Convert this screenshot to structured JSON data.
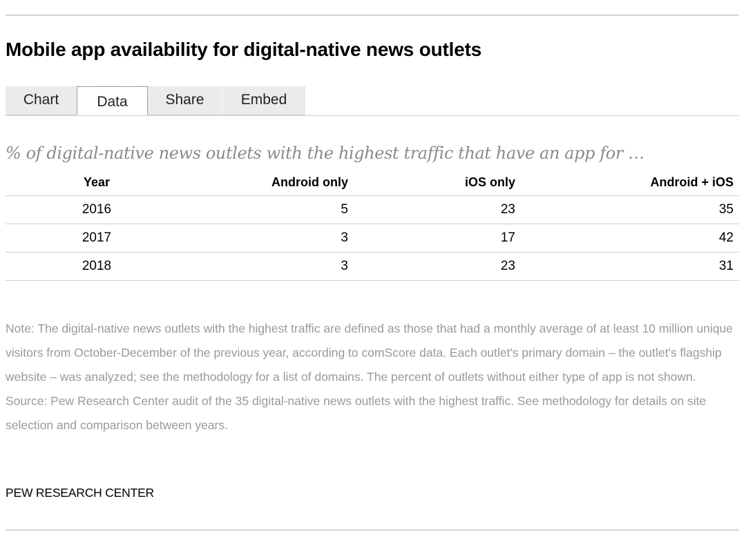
{
  "title": "Mobile app availability for digital-native news outlets",
  "tabs": [
    {
      "label": "Chart",
      "active": false
    },
    {
      "label": "Data",
      "active": true
    },
    {
      "label": "Share",
      "active": false
    },
    {
      "label": "Embed",
      "active": false
    }
  ],
  "chart_data": {
    "type": "table",
    "title": "% of digital-native news outlets with the highest traffic that have an app for …",
    "columns": [
      "Year",
      "Android only",
      "iOS only",
      "Android + iOS"
    ],
    "rows": [
      {
        "year": "2016",
        "android_only": "5",
        "ios_only": "23",
        "android_ios": "35"
      },
      {
        "year": "2017",
        "android_only": "3",
        "ios_only": "17",
        "android_ios": "42"
      },
      {
        "year": "2018",
        "android_only": "3",
        "ios_only": "23",
        "android_ios": "31"
      }
    ]
  },
  "note": "Note: The digital-native news outlets with the highest traffic are defined as those that had a monthly average of at least 10 million unique visitors from October-December of the previous year, according to comScore data. Each outlet's primary domain – the outlet's flagship website – was analyzed; see the methodology for a list of domains. The percent of outlets without either type of app is not shown.",
  "source": "Source: Pew Research Center audit of the 35 digital-native news outlets with the highest traffic. See methodology for details on site selection and comparison between years.",
  "credit": "PEW RESEARCH CENTER",
  "colors": {
    "rule": "#d6d6d6",
    "tab_background": "#ebebeb",
    "subtitle": "#8a8a8a",
    "note_text": "#9a9a9a"
  }
}
